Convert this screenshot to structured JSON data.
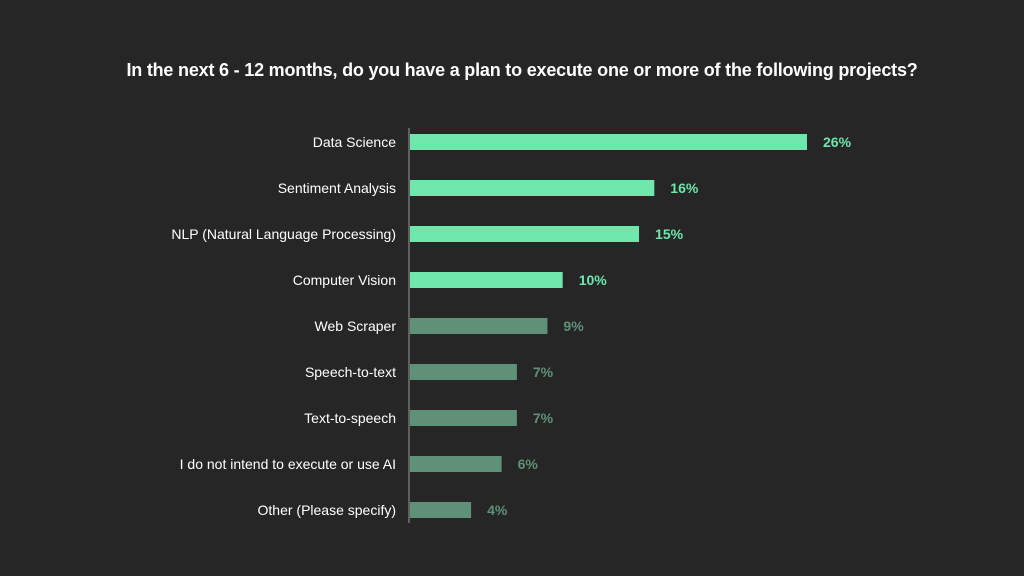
{
  "chart_data": {
    "type": "bar",
    "orientation": "horizontal",
    "title": "In the next 6 - 12 months, do you have a plan to execute one or more of the following projects?",
    "categories": [
      "Data Science",
      "Sentiment Analysis",
      "NLP (Natural Language Processing)",
      "Computer Vision",
      "Web Scraper",
      "Speech-to-text",
      "Text-to-speech",
      "I do not intend to execute or use AI",
      "Other (Please specify)"
    ],
    "values": [
      26,
      16,
      15,
      10,
      9,
      7,
      7,
      6,
      4
    ],
    "value_labels": [
      "26%",
      "16%",
      "15%",
      "10%",
      "9%",
      "7%",
      "7%",
      "6%",
      "4%"
    ],
    "highlighted": [
      true,
      true,
      true,
      true,
      false,
      false,
      false,
      false,
      false
    ],
    "colors": {
      "highlight": "#6ee6ac",
      "muted": "#5f9078",
      "background": "#262626",
      "text": "#ffffff",
      "axis": "#9a9a9a"
    },
    "grid": false,
    "legend": "none",
    "xlim": [
      0,
      26
    ]
  }
}
